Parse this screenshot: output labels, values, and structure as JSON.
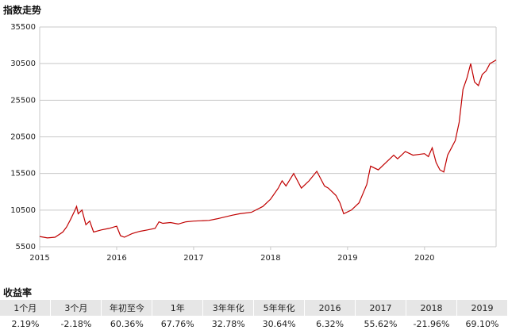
{
  "chart_data": {
    "type": "line",
    "title": "指数走势",
    "color": "#c00000",
    "grid": true,
    "x": [
      2015.0,
      2015.1,
      2015.2,
      2015.3,
      2015.35,
      2015.4,
      2015.45,
      2015.48,
      2015.5,
      2015.55,
      2015.6,
      2015.65,
      2015.7,
      2015.8,
      2015.9,
      2016.0,
      2016.05,
      2016.1,
      2016.2,
      2016.3,
      2016.4,
      2016.5,
      2016.55,
      2016.6,
      2016.7,
      2016.8,
      2016.9,
      2017.0,
      2017.2,
      2017.3,
      2017.5,
      2017.6,
      2017.75,
      2017.9,
      2018.0,
      2018.1,
      2018.15,
      2018.2,
      2018.3,
      2018.4,
      2018.5,
      2018.6,
      2018.7,
      2018.75,
      2018.85,
      2018.9,
      2018.95,
      2019.05,
      2019.15,
      2019.25,
      2019.3,
      2019.4,
      2019.5,
      2019.6,
      2019.65,
      2019.75,
      2019.85,
      2020.0,
      2020.05,
      2020.1,
      2020.15,
      2020.2,
      2020.25,
      2020.3,
      2020.35,
      2020.4,
      2020.45,
      2020.5,
      2020.55,
      2020.6,
      2020.65,
      2020.7,
      2020.75,
      2020.8,
      2020.85,
      2020.9,
      2020.93
    ],
    "values": [
      6900,
      6700,
      6800,
      7500,
      8200,
      9200,
      10300,
      11000,
      10000,
      10500,
      8500,
      9000,
      7500,
      7800,
      8000,
      8300,
      7000,
      6800,
      7300,
      7600,
      7800,
      8000,
      8900,
      8700,
      8800,
      8600,
      8900,
      9000,
      9100,
      9300,
      9800,
      10000,
      10200,
      11000,
      12000,
      13500,
      14500,
      13800,
      15500,
      13500,
      14500,
      15800,
      13800,
      13500,
      12500,
      11500,
      10000,
      10500,
      11500,
      14000,
      16500,
      16000,
      17000,
      18000,
      17500,
      18500,
      18000,
      18200,
      17800,
      19000,
      17000,
      16000,
      15700,
      18000,
      19000,
      20000,
      22500,
      27000,
      28500,
      30500,
      28000,
      27500,
      29000,
      29500,
      30500,
      30800,
      31000
    ],
    "xlim": [
      2015,
      2020.93
    ],
    "xticks": [
      2015,
      2016,
      2017,
      2018,
      2019,
      2020
    ],
    "ylim": [
      5500,
      35500
    ],
    "yticks": [
      5500,
      10500,
      15500,
      20500,
      25500,
      30500,
      35500
    ]
  },
  "table": {
    "title": "收益率",
    "headers": [
      "1个月",
      "3个月",
      "年初至今",
      "1年",
      "3年年化",
      "5年年化",
      "2016",
      "2017",
      "2018",
      "2019"
    ],
    "rows": [
      [
        "2.19%",
        "-2.18%",
        "60.36%",
        "67.76%",
        "32.78%",
        "30.64%",
        "6.32%",
        "55.62%",
        "-21.96%",
        "69.10%"
      ]
    ]
  }
}
